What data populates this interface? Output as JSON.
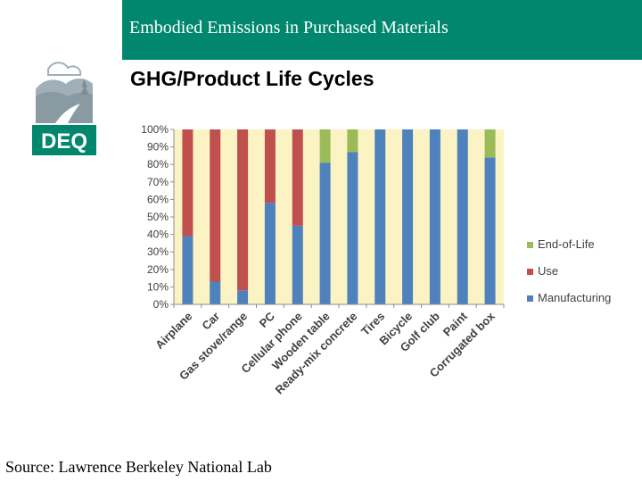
{
  "header": {
    "title": "Embodied Emissions in Purchased Materials"
  },
  "logo": {
    "text": "DEQ",
    "icon": "deq-landscape-logo"
  },
  "subtitle": "GHG/Product Life Cycles",
  "footer": {
    "source": "Source: Lawrence Berkeley National Lab"
  },
  "colors": {
    "header": "#00876d",
    "plot_bg": "#fbf3c3",
    "manufacturing": "#4f81bd",
    "use": "#c0504d",
    "end_of_life": "#9bbb59"
  },
  "chart_data": {
    "type": "bar",
    "stacked": true,
    "title": "",
    "xlabel": "",
    "ylabel": "",
    "ylim": [
      0,
      100
    ],
    "yticks": [
      "0%",
      "10%",
      "20%",
      "30%",
      "40%",
      "50%",
      "60%",
      "70%",
      "80%",
      "90%",
      "100%"
    ],
    "categories": [
      "Airplane",
      "Car",
      "Gas stove/range",
      "PC",
      "Cellular phone",
      "Wooden table",
      "Ready-mix concrete",
      "Tires",
      "Bicycle",
      "Golf club",
      "Paint",
      "Corrugated box"
    ],
    "series": [
      {
        "name": "Manufacturing",
        "values": [
          39,
          13,
          8,
          58,
          45,
          81,
          87,
          100,
          100,
          100,
          100,
          84
        ]
      },
      {
        "name": "Use",
        "values": [
          61,
          87,
          92,
          42,
          55,
          0,
          0,
          0,
          0,
          0,
          0,
          0
        ]
      },
      {
        "name": "End-of-Life",
        "values": [
          0,
          0,
          0,
          0,
          0,
          19,
          13,
          0,
          0,
          0,
          0,
          16
        ]
      }
    ],
    "legend": [
      "End-of-Life",
      "Use",
      "Manufacturing"
    ],
    "legend_position": "right",
    "grid": false
  }
}
